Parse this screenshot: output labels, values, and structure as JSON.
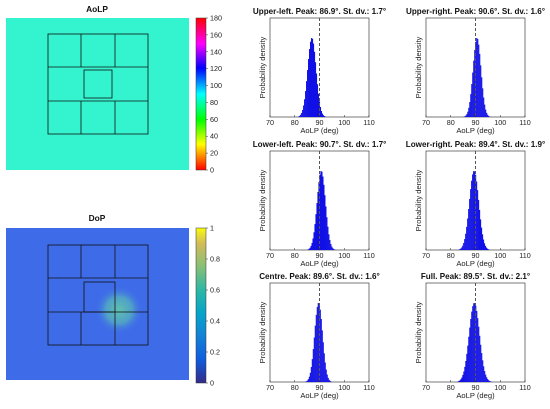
{
  "chart_data": [
    {
      "type": "heatmap",
      "title": "AoLP",
      "colormap": "hsv",
      "colorbar": {
        "range": [
          0,
          180
        ],
        "ticks": [
          0,
          20,
          40,
          60,
          80,
          100,
          120,
          140,
          160,
          180
        ]
      },
      "field": {
        "dominant_value": 90,
        "background_hex": "#33f4cf"
      },
      "overlay_grid": "nine-region square grid"
    },
    {
      "type": "heatmap",
      "title": "DoP",
      "colormap": "parula",
      "colorbar": {
        "range": [
          0,
          1
        ],
        "ticks": [
          0,
          0.2,
          0.4,
          0.6,
          0.8,
          1
        ]
      },
      "field": {
        "dominant_value": 0.2,
        "bright_spot_value": 0.5,
        "background_hex": "#3e6ce8"
      },
      "overlay_grid": "nine-region square grid"
    },
    {
      "type": "bar",
      "title": "Upper-left. Peak: 86.9°. St. dv.: 1.7°",
      "peak": 86.9,
      "std": 1.7,
      "xlabel": "AoLP (deg)",
      "ylabel": "Probability density",
      "xlim": [
        70,
        110
      ],
      "xticks": [
        70,
        80,
        90,
        100,
        110
      ],
      "reference_line_x": 90
    },
    {
      "type": "bar",
      "title": "Upper-right. Peak: 90.6°. St. dv.: 1.6°",
      "peak": 90.6,
      "std": 1.6,
      "xlabel": "AoLP (deg)",
      "ylabel": "Probability density",
      "xlim": [
        70,
        110
      ],
      "xticks": [
        70,
        80,
        90,
        100,
        110
      ],
      "reference_line_x": 90
    },
    {
      "type": "bar",
      "title": "Lower-left. Peak: 90.7°. St. dv.: 1.7°",
      "peak": 90.7,
      "std": 1.7,
      "xlabel": "AoLP (deg)",
      "ylabel": "Probability density",
      "xlim": [
        70,
        110
      ],
      "xticks": [
        70,
        80,
        90,
        100,
        110
      ],
      "reference_line_x": 90
    },
    {
      "type": "bar",
      "title": "Lower-right. Peak: 89.4°. St. dv.: 1.9°",
      "peak": 89.4,
      "std": 1.9,
      "xlabel": "AoLP (deg)",
      "ylabel": "Probability density",
      "xlim": [
        70,
        110
      ],
      "xticks": [
        70,
        80,
        90,
        100,
        110
      ],
      "reference_line_x": 90
    },
    {
      "type": "bar",
      "title": "Centre. Peak: 89.6°. St. dv.: 1.6°",
      "peak": 89.6,
      "std": 1.6,
      "xlabel": "AoLP (deg)",
      "ylabel": "Probability density",
      "xlim": [
        70,
        110
      ],
      "xticks": [
        70,
        80,
        90,
        100,
        110
      ],
      "reference_line_x": 90
    },
    {
      "type": "bar",
      "title": "Full. Peak: 89.5°. St. dv.: 2.1°",
      "peak": 89.5,
      "std": 2.1,
      "xlabel": "AoLP (deg)",
      "ylabel": "Probability density",
      "xlim": [
        70,
        110
      ],
      "xticks": [
        70,
        80,
        90,
        100,
        110
      ],
      "reference_line_x": 90
    }
  ],
  "colors": {
    "bar_fill": "#1111e6",
    "dashed_line": "#555555",
    "grid_lines": "#111111"
  }
}
